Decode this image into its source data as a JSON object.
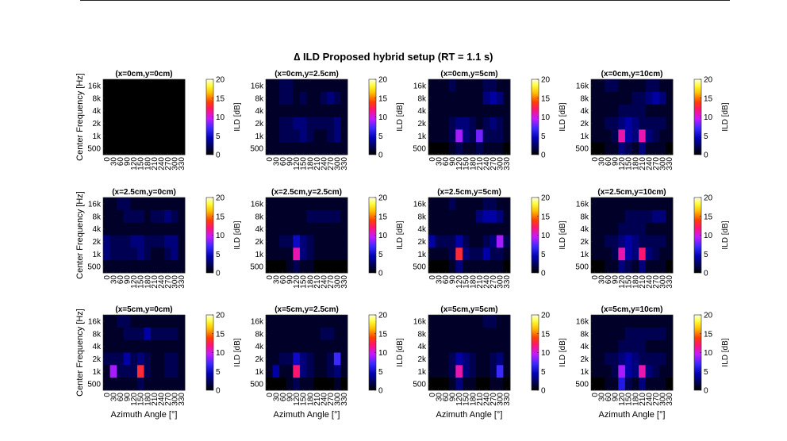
{
  "chart_data": {
    "type": "heatmap",
    "title": "∆ ILD Proposed hybrid setup (RT = 1.1 s)",
    "xlabel": "Azimuth Angle [°]",
    "ylabel": "Center Frequency [Hz]",
    "colorbar_label": "ILD [dB]",
    "colormap": "hot-blue (black → blue → magenta → red → yellow → white)",
    "clim": [
      0,
      20
    ],
    "colorbar_ticks": [
      "20",
      "15",
      "10",
      "5",
      "0"
    ],
    "x_ticks": [
      "0",
      "30",
      "60",
      "90",
      "120",
      "150",
      "180",
      "210",
      "240",
      "270",
      "300",
      "330"
    ],
    "y_ticks": [
      "16k",
      "8k",
      "4k",
      "2k",
      "1k",
      "500"
    ],
    "grid": false,
    "panels": [
      {
        "title": "(x=0cm,y=0cm)",
        "values": [
          [
            0,
            0,
            0,
            0,
            0,
            0,
            0,
            0,
            0,
            0,
            0,
            0
          ],
          [
            0,
            0,
            0,
            0,
            0,
            0,
            0,
            0,
            0,
            0,
            0,
            0
          ],
          [
            0,
            0,
            0,
            0,
            0,
            0,
            0,
            0,
            0,
            0,
            0,
            0
          ],
          [
            0,
            0,
            0,
            0,
            0,
            0,
            0,
            0,
            0,
            0,
            0,
            0
          ],
          [
            0,
            0,
            0,
            0,
            0,
            0,
            0,
            0,
            0,
            0,
            0,
            0
          ],
          [
            0,
            0,
            0,
            0,
            0,
            0,
            0,
            0,
            0,
            0,
            0,
            0
          ]
        ]
      },
      {
        "title": "(x=0cm,y=2.5cm)",
        "values": [
          [
            1,
            1,
            2,
            2,
            1,
            1,
            1,
            1,
            1,
            1,
            1,
            1
          ],
          [
            1,
            1,
            2,
            2,
            1,
            2,
            1,
            1,
            2,
            3,
            2,
            1
          ],
          [
            1,
            1,
            1,
            1,
            1,
            1,
            1,
            1,
            1,
            1,
            1,
            1
          ],
          [
            1,
            1,
            2,
            2,
            3,
            3,
            2,
            2,
            2,
            2,
            3,
            1
          ],
          [
            1,
            1,
            2,
            2,
            2,
            3,
            2,
            1,
            1,
            2,
            3,
            1
          ],
          [
            1,
            1,
            1,
            1,
            1,
            1,
            1,
            1,
            1,
            1,
            1,
            1
          ]
        ]
      },
      {
        "title": "(x=0cm,y=5cm)",
        "values": [
          [
            1,
            1,
            1,
            2,
            1,
            1,
            1,
            1,
            2,
            2,
            1,
            1
          ],
          [
            1,
            1,
            1,
            1,
            1,
            1,
            1,
            1,
            3,
            4,
            3,
            1
          ],
          [
            1,
            1,
            1,
            1,
            1,
            1,
            1,
            1,
            1,
            1,
            1,
            1
          ],
          [
            1,
            1,
            1,
            2,
            3,
            3,
            2,
            1,
            2,
            3,
            2,
            1
          ],
          [
            1,
            1,
            1,
            2,
            9,
            3,
            2,
            8,
            2,
            2,
            2,
            1
          ],
          [
            0,
            0,
            0,
            1,
            2,
            1,
            1,
            2,
            1,
            1,
            1,
            0
          ]
        ]
      },
      {
        "title": "(x=0cm,y=10cm)",
        "values": [
          [
            1,
            1,
            2,
            2,
            1,
            1,
            1,
            1,
            2,
            2,
            1,
            1
          ],
          [
            1,
            1,
            1,
            1,
            1,
            1,
            2,
            2,
            3,
            4,
            3,
            1
          ],
          [
            1,
            1,
            1,
            1,
            2,
            2,
            2,
            2,
            1,
            1,
            1,
            1
          ],
          [
            1,
            1,
            2,
            2,
            3,
            4,
            3,
            2,
            2,
            2,
            2,
            1
          ],
          [
            1,
            1,
            1,
            2,
            11,
            4,
            3,
            11,
            3,
            2,
            1,
            1
          ],
          [
            0,
            0,
            1,
            1,
            3,
            2,
            1,
            3,
            1,
            1,
            1,
            0
          ]
        ]
      },
      {
        "title": "(x=2.5cm,y=0cm)",
        "values": [
          [
            1,
            1,
            2,
            2,
            1,
            1,
            1,
            1,
            1,
            1,
            1,
            1
          ],
          [
            1,
            1,
            1,
            2,
            2,
            2,
            1,
            2,
            2,
            3,
            2,
            1
          ],
          [
            1,
            1,
            1,
            1,
            1,
            1,
            1,
            1,
            1,
            1,
            1,
            1
          ],
          [
            3,
            2,
            2,
            2,
            3,
            3,
            2,
            2,
            2,
            3,
            3,
            1
          ],
          [
            3,
            2,
            2,
            2,
            2,
            3,
            2,
            1,
            1,
            2,
            3,
            1
          ],
          [
            1,
            1,
            1,
            1,
            1,
            1,
            1,
            1,
            1,
            1,
            1,
            1
          ]
        ]
      },
      {
        "title": "(x=2.5cm,y=2.5cm)",
        "values": [
          [
            1,
            1,
            1,
            1,
            1,
            1,
            1,
            1,
            1,
            1,
            1,
            1
          ],
          [
            1,
            1,
            1,
            1,
            1,
            1,
            2,
            2,
            2,
            2,
            2,
            1
          ],
          [
            1,
            1,
            1,
            1,
            1,
            1,
            1,
            1,
            1,
            1,
            1,
            1
          ],
          [
            1,
            1,
            2,
            2,
            5,
            3,
            2,
            1,
            1,
            1,
            1,
            1
          ],
          [
            1,
            1,
            1,
            1,
            11,
            3,
            2,
            1,
            1,
            1,
            1,
            1
          ],
          [
            0,
            0,
            0,
            1,
            2,
            1,
            1,
            0,
            0,
            0,
            0,
            0
          ]
        ]
      },
      {
        "title": "(x=2.5cm,y=5cm)",
        "values": [
          [
            1,
            1,
            1,
            2,
            1,
            1,
            1,
            1,
            2,
            2,
            1,
            1
          ],
          [
            1,
            1,
            1,
            1,
            1,
            1,
            1,
            3,
            4,
            4,
            3,
            1
          ],
          [
            1,
            1,
            1,
            1,
            1,
            1,
            1,
            1,
            1,
            1,
            1,
            1
          ],
          [
            4,
            2,
            2,
            2,
            4,
            2,
            1,
            1,
            2,
            3,
            9,
            2
          ],
          [
            1,
            1,
            1,
            2,
            13,
            3,
            2,
            2,
            4,
            2,
            2,
            1
          ],
          [
            0,
            0,
            0,
            1,
            3,
            1,
            1,
            1,
            1,
            1,
            1,
            0
          ]
        ]
      },
      {
        "title": "(x=2.5cm,y=10cm)",
        "values": [
          [
            1,
            1,
            1,
            1,
            1,
            1,
            1,
            1,
            1,
            1,
            1,
            1
          ],
          [
            1,
            1,
            1,
            1,
            1,
            2,
            2,
            2,
            2,
            3,
            3,
            1
          ],
          [
            1,
            1,
            1,
            1,
            2,
            2,
            2,
            2,
            1,
            1,
            1,
            1
          ],
          [
            1,
            1,
            2,
            2,
            3,
            4,
            3,
            2,
            2,
            2,
            2,
            1
          ],
          [
            1,
            1,
            1,
            2,
            11,
            4,
            3,
            12,
            3,
            2,
            1,
            1
          ],
          [
            0,
            0,
            1,
            1,
            3,
            2,
            1,
            3,
            1,
            1,
            1,
            0
          ]
        ]
      },
      {
        "title": "(x=5cm,y=0cm)",
        "values": [
          [
            1,
            1,
            2,
            2,
            1,
            1,
            1,
            1,
            1,
            1,
            1,
            1
          ],
          [
            1,
            1,
            1,
            2,
            2,
            2,
            4,
            2,
            2,
            2,
            2,
            1
          ],
          [
            1,
            1,
            1,
            1,
            1,
            1,
            1,
            1,
            1,
            1,
            1,
            1
          ],
          [
            2,
            2,
            2,
            4,
            2,
            3,
            2,
            1,
            1,
            2,
            2,
            1
          ],
          [
            1,
            9,
            2,
            2,
            2,
            13,
            2,
            1,
            1,
            2,
            2,
            1
          ],
          [
            1,
            1,
            1,
            1,
            1,
            2,
            1,
            1,
            1,
            1,
            1,
            1
          ]
        ]
      },
      {
        "title": "(x=5cm,y=2.5cm)",
        "values": [
          [
            1,
            1,
            1,
            1,
            1,
            1,
            1,
            1,
            1,
            1,
            1,
            1
          ],
          [
            1,
            1,
            1,
            1,
            1,
            1,
            1,
            1,
            2,
            2,
            1,
            1
          ],
          [
            1,
            1,
            1,
            1,
            1,
            1,
            1,
            1,
            1,
            1,
            1,
            1
          ],
          [
            1,
            1,
            2,
            2,
            5,
            3,
            2,
            1,
            1,
            2,
            7,
            1
          ],
          [
            1,
            4,
            1,
            1,
            12,
            3,
            2,
            1,
            1,
            2,
            3,
            1
          ],
          [
            0,
            0,
            0,
            1,
            2,
            1,
            1,
            0,
            0,
            0,
            1,
            0
          ]
        ]
      },
      {
        "title": "(x=5cm,y=5cm)",
        "values": [
          [
            1,
            1,
            1,
            1,
            1,
            1,
            1,
            1,
            2,
            2,
            1,
            1
          ],
          [
            1,
            1,
            1,
            1,
            1,
            1,
            1,
            1,
            1,
            1,
            1,
            1
          ],
          [
            1,
            1,
            1,
            1,
            1,
            1,
            1,
            1,
            1,
            1,
            1,
            1
          ],
          [
            1,
            1,
            1,
            2,
            4,
            3,
            2,
            1,
            1,
            2,
            3,
            1
          ],
          [
            1,
            1,
            1,
            2,
            11,
            3,
            2,
            1,
            1,
            2,
            7,
            1
          ],
          [
            0,
            0,
            0,
            1,
            3,
            1,
            1,
            0,
            0,
            1,
            1,
            0
          ]
        ]
      },
      {
        "title": "(x=5cm,y=10cm)",
        "values": [
          [
            1,
            1,
            1,
            1,
            1,
            1,
            1,
            1,
            1,
            1,
            1,
            1
          ],
          [
            1,
            1,
            1,
            1,
            1,
            2,
            2,
            2,
            2,
            2,
            2,
            1
          ],
          [
            1,
            1,
            1,
            1,
            2,
            2,
            2,
            2,
            1,
            1,
            1,
            1
          ],
          [
            1,
            1,
            2,
            2,
            3,
            4,
            3,
            2,
            2,
            2,
            2,
            1
          ],
          [
            1,
            1,
            1,
            2,
            9,
            4,
            3,
            11,
            3,
            2,
            1,
            1
          ],
          [
            0,
            0,
            1,
            1,
            6,
            2,
            1,
            3,
            1,
            1,
            1,
            0
          ]
        ]
      }
    ]
  }
}
